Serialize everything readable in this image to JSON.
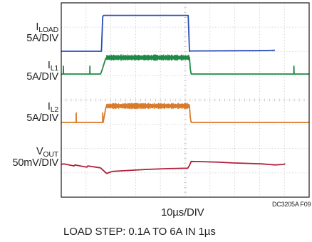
{
  "chart_data": {
    "type": "line",
    "title": "",
    "x_axis": {
      "label": "10µs/DIV",
      "divisions": 10,
      "range_us": [
        0,
        100
      ]
    },
    "series": [
      {
        "name": "LOAD",
        "label_main": "I",
        "label_sub": "LOAD",
        "scale": "5A/DIV",
        "color": "#2a4fb5",
        "points": [
          [
            0,
            0
          ],
          [
            47,
            0
          ],
          [
            48.5,
            1.15
          ],
          [
            49.5,
            1.2
          ],
          [
            100,
            1.2
          ],
          [
            148.5,
            1.2
          ],
          [
            150,
            0
          ],
          [
            151.5,
            0.01
          ],
          [
            220,
            0.02
          ],
          [
            230,
            0.02
          ],
          [
            250,
            0.03
          ]
        ]
      },
      {
        "name": "L1",
        "label_main": "I",
        "label_sub": "L1",
        "scale": "5A/DIV",
        "color": "#1f8a47",
        "noise": {
          "from_us": 53,
          "to_us": 150,
          "amplitude_px": 4.5
        },
        "points": [
          [
            0,
            0
          ],
          [
            2.4,
            0
          ],
          [
            2.5,
            0.5
          ],
          [
            2.7,
            0
          ],
          [
            33.4,
            0
          ],
          [
            33.5,
            0.5
          ],
          [
            33.7,
            0
          ],
          [
            46,
            0
          ],
          [
            48,
            0.3
          ],
          [
            52,
            1.0
          ],
          [
            53,
            1.05
          ],
          [
            150,
            1.05
          ],
          [
            151,
            0.3
          ],
          [
            152,
            0
          ],
          [
            272,
            0
          ],
          [
            272.2,
            0.5
          ],
          [
            272.4,
            0
          ],
          [
            290,
            0
          ]
        ]
      },
      {
        "name": "L2",
        "label_main": "I",
        "label_sub": "L2",
        "scale": "5A/DIV",
        "color": "#d87b2a",
        "noise": {
          "from_us": 53,
          "to_us": 150,
          "amplitude_px": 4.5
        },
        "points": [
          [
            0,
            0
          ],
          [
            17.4,
            0
          ],
          [
            17.5,
            0.6
          ],
          [
            17.7,
            0
          ],
          [
            48.4,
            0
          ],
          [
            48.5,
            0.6
          ],
          [
            48.7,
            0
          ],
          [
            49,
            0
          ],
          [
            52,
            0.9
          ],
          [
            53,
            1.05
          ],
          [
            150,
            1.05
          ],
          [
            151,
            0.3
          ],
          [
            152,
            0
          ],
          [
            290,
            0
          ]
        ]
      },
      {
        "name": "OUT",
        "label_main": "V",
        "label_sub": "OUT",
        "scale": "50mV/DIV",
        "color": "#b0203a",
        "points": [
          [
            0,
            0
          ],
          [
            3,
            0.05
          ],
          [
            15,
            -0.15
          ],
          [
            16,
            -0.05
          ],
          [
            30,
            -0.28
          ],
          [
            31,
            -0.15
          ],
          [
            46,
            -0.35
          ],
          [
            53,
            -0.9
          ],
          [
            60,
            -0.7
          ],
          [
            80,
            -0.6
          ],
          [
            100,
            -0.5
          ],
          [
            125,
            -0.42
          ],
          [
            148,
            -0.38
          ],
          [
            150,
            -0.1
          ],
          [
            152,
            0.3
          ],
          [
            165,
            0.28
          ],
          [
            185,
            0.22
          ],
          [
            200,
            0.15
          ],
          [
            220,
            0.1
          ],
          [
            235,
            0.05
          ],
          [
            250,
            -0.05
          ],
          [
            260,
            0
          ],
          [
            262,
            0.05
          ]
        ]
      }
    ],
    "figure_id": "DC3205A F09",
    "caption": "LOAD STEP: 0.1A TO 6A IN 1µs",
    "grid": true
  }
}
